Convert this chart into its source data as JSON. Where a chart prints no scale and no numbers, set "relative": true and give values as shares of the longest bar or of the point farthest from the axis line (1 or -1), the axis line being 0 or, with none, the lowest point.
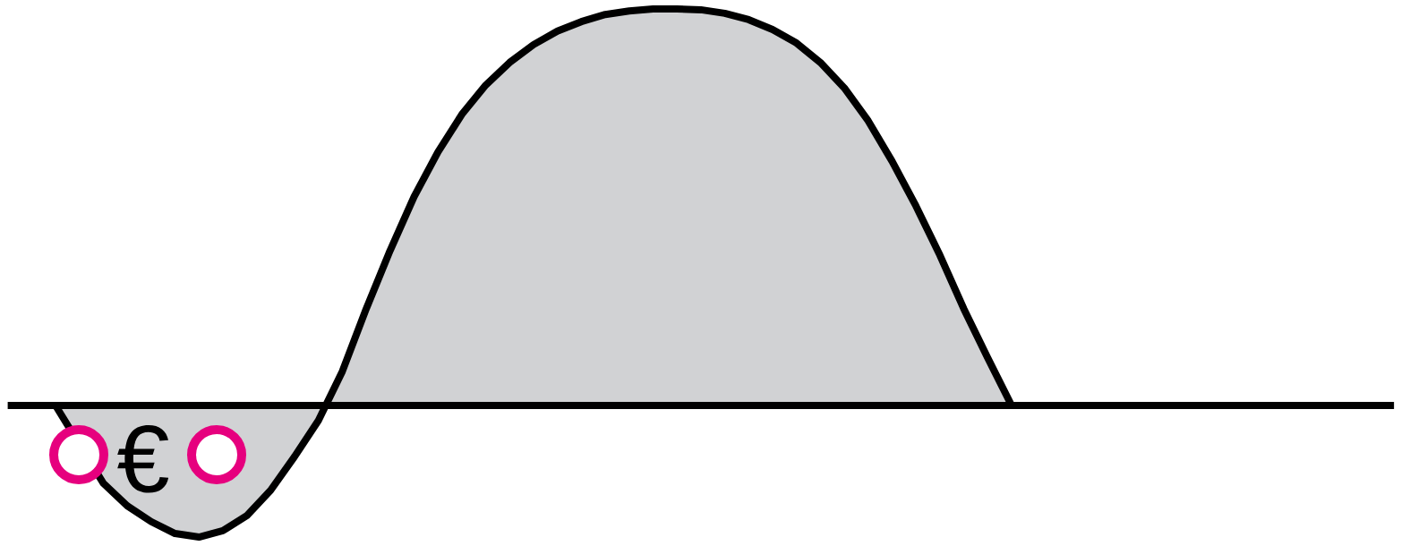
{
  "chart_data": {
    "type": "area",
    "relative": true,
    "categories": [
      null,
      null,
      null,
      null,
      null,
      null,
      null,
      null,
      null,
      null,
      null,
      null,
      null,
      null,
      null,
      null,
      null,
      null,
      null,
      null,
      null,
      null,
      null,
      null,
      null,
      null,
      null,
      null,
      null,
      null,
      null,
      null,
      null,
      null,
      null,
      null,
      null,
      null,
      null,
      null,
      null,
      null,
      null,
      null,
      null,
      null,
      null,
      null,
      null,
      null,
      null,
      null,
      null,
      null,
      null,
      null,
      null,
      null,
      null
    ],
    "series": [
      {
        "color": "#d1d2d4",
        "values": [
          null,
          null,
          0,
          null,
          -0.196,
          -0.253,
          -0.293,
          -0.323,
          -0.332,
          -0.316,
          -0.278,
          -0.214,
          -0.129,
          -0.038,
          0.086,
          0.244,
          0.391,
          0.526,
          0.639,
          0.734,
          0.808,
          0.865,
          0.91,
          0.944,
          0.968,
          0.986,
          0.995,
          1.0,
          1.0,
          0.998,
          0.989,
          0.973,
          0.948,
          0.914,
          0.865,
          0.801,
          0.718,
          0.616,
          0.503,
          0.379,
          0.244,
          0.12,
          0,
          null,
          null,
          null,
          null,
          null,
          null,
          null,
          null,
          null,
          null,
          null,
          null,
          null,
          null,
          null,
          null
        ]
      }
    ],
    "annotations": [
      "€"
    ]
  }
}
